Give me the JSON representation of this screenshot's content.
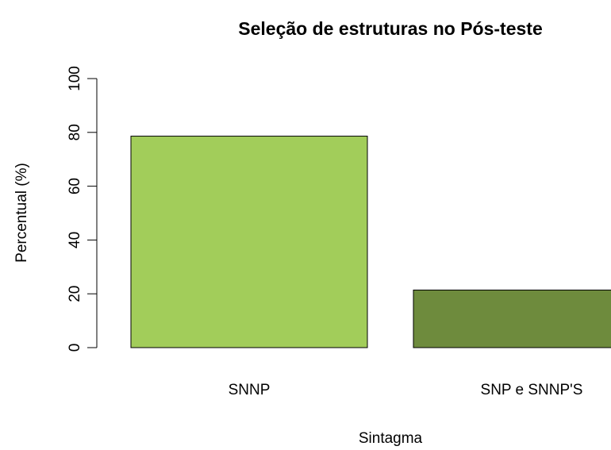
{
  "chart_data": {
    "type": "bar",
    "title": "Seleção de estruturas no Pós-teste",
    "x_label": "Sintagma",
    "y_label": "Percentual (%)",
    "categories": [
      "SNNP",
      "SNP e SNNP'S"
    ],
    "values": [
      78.6,
      21.4
    ],
    "colors": [
      "#a2cd5a",
      "#6e8b3d"
    ],
    "ylim": [
      0,
      100
    ],
    "yticks": [
      0,
      20,
      40,
      60,
      80,
      100
    ],
    "grid": false
  }
}
